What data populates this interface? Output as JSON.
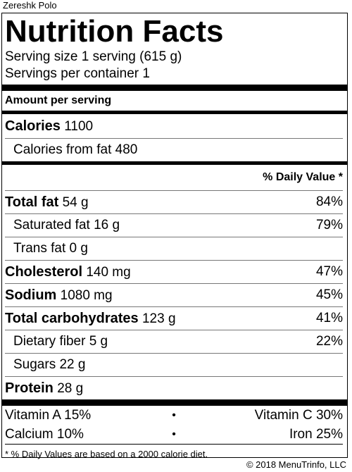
{
  "dish_name": "Zereshk Polo",
  "title": "Nutrition Facts",
  "serving_size": "Serving size 1 serving (615 g)",
  "servings_per_container": "Servings per container 1",
  "amount_per_serving": "Amount per serving",
  "calories": {
    "label": "Calories",
    "value": "1100"
  },
  "calories_from_fat": "Calories from fat 480",
  "daily_value_header": "% Daily Value *",
  "nutrients": [
    {
      "label": "Total fat",
      "value": "54 g",
      "dv": "84%"
    },
    {
      "label": "Saturated fat 16 g",
      "dv": "79%"
    },
    {
      "label": "Trans fat 0 g",
      "dv": ""
    },
    {
      "label": "Cholesterol",
      "value": "140 mg",
      "dv": "47%"
    },
    {
      "label": "Sodium",
      "value": "1080 mg",
      "dv": "45%"
    },
    {
      "label": "Total carbohydrates",
      "value": "123 g",
      "dv": "41%"
    },
    {
      "label": "Dietary fiber 5 g",
      "dv": "22%"
    },
    {
      "label": "Sugars 22 g",
      "dv": ""
    },
    {
      "label": "Protein",
      "value": "28 g",
      "dv": ""
    }
  ],
  "vitamins": [
    {
      "left": "Vitamin A 15%",
      "right": "Vitamin C 30%"
    },
    {
      "left": "Calcium 10%",
      "right": "Iron 25%"
    }
  ],
  "bullet": "•",
  "footnote": "* % Daily Values are based on a 2000 calorie diet.",
  "copyright": "© 2018 MenuTrinfo, LLC"
}
